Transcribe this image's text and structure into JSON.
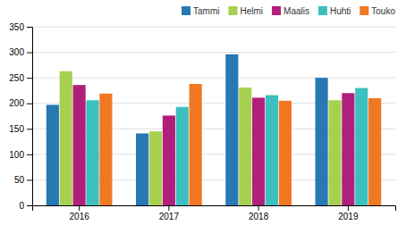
{
  "chart_data": {
    "type": "bar",
    "categories": [
      "2016",
      "2017",
      "2018",
      "2019"
    ],
    "series": [
      {
        "name": "Tammi",
        "color": "#2878B4",
        "values": [
          197,
          141,
          296,
          250
        ]
      },
      {
        "name": "Helmi",
        "color": "#A8D050",
        "values": [
          263,
          145,
          231,
          206
        ]
      },
      {
        "name": "Maalis",
        "color": "#B0207A",
        "values": [
          236,
          176,
          211,
          220
        ]
      },
      {
        "name": "Huhti",
        "color": "#3CBFBF",
        "values": [
          206,
          193,
          216,
          230
        ]
      },
      {
        "name": "Touko",
        "color": "#F07820",
        "values": [
          219,
          238,
          205,
          210
        ]
      }
    ],
    "ylim": [
      0,
      350
    ],
    "yticks": [
      0,
      50,
      100,
      150,
      200,
      250,
      300,
      350
    ],
    "grid": true,
    "legend": "upper right"
  }
}
